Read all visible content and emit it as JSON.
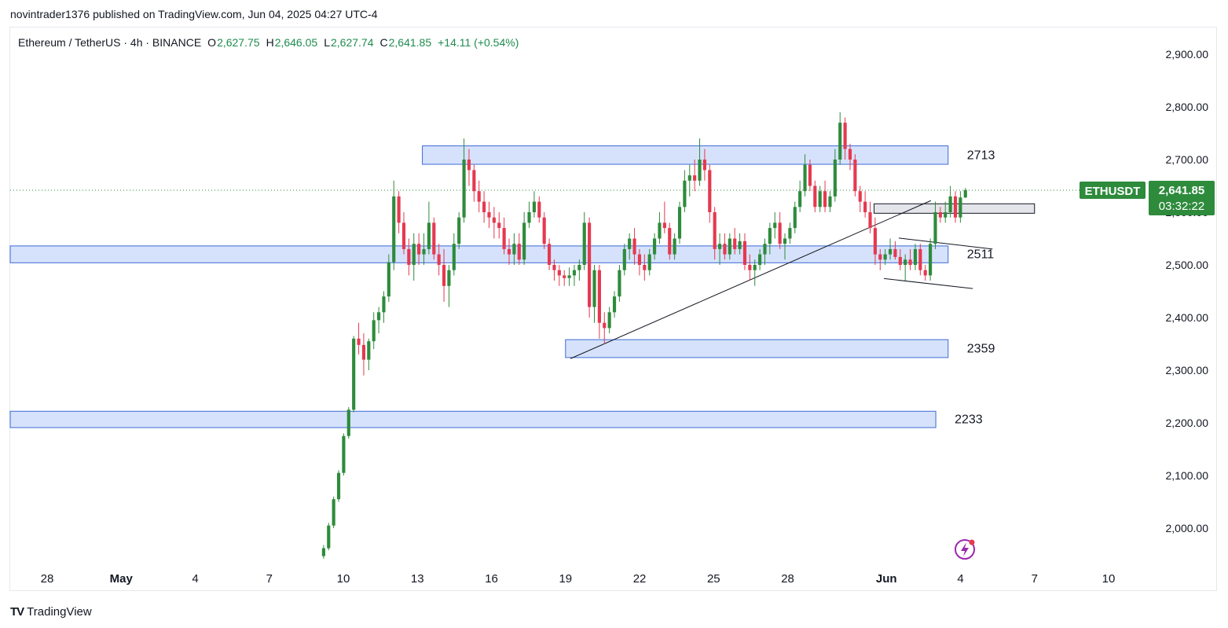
{
  "header": {
    "published_by": "novintrader1376 published on TradingView.com, Jun 04, 2025 04:27 UTC-4"
  },
  "footer": {
    "brand": "TradingView",
    "logo_icon": "tradingview-logo-icon"
  },
  "colors": {
    "up": "#26a69a",
    "up_body": "#2e8b3c",
    "down": "#ef5350",
    "down_body": "#e53950",
    "zone_fill": "#d6e2fb",
    "zone_stroke": "#3d6ad6",
    "ohlc_green": "#1e8c4e",
    "price_tag": "#2e8b3c"
  },
  "chart_data": {
    "type": "candlestick",
    "symbol_line": {
      "name": "Ethereum / TetherUS · 4h · BINANCE",
      "open_label": "O",
      "open": "2,627.75",
      "high_label": "H",
      "high": "2,646.05",
      "low_label": "L",
      "low": "2,627.74",
      "close_label": "C",
      "close": "2,641.85",
      "change": "+14.11 (+0.54%)"
    },
    "ylim": [
      1940,
      2950
    ],
    "y_ticks": [
      "2,000.00",
      "2,100.00",
      "2,200.00",
      "2,300.00",
      "2,400.00",
      "2,500.00",
      "2,600.00",
      "2,700.00",
      "2,800.00",
      "2,900.00"
    ],
    "y_tick_values": [
      2000,
      2100,
      2200,
      2300,
      2400,
      2500,
      2600,
      2700,
      2800,
      2900
    ],
    "x_ticks": [
      "28",
      "May",
      "4",
      "7",
      "10",
      "13",
      "16",
      "19",
      "22",
      "25",
      "28",
      "Jun",
      "4",
      "7",
      "10"
    ],
    "x_tick_days": [
      -3,
      0,
      3,
      6,
      9,
      12,
      15,
      18,
      21,
      24,
      27,
      31,
      34,
      37,
      40
    ],
    "x_domain_days": [
      -4.5,
      45.5
    ],
    "last_price": {
      "symbol": "ETHUSDT",
      "price": "2,641.85",
      "value": 2641.85,
      "countdown": "03:32:22"
    },
    "zones": [
      {
        "label": "2713",
        "from_day": 12.2,
        "to_day": 33.5,
        "low": 2691,
        "high": 2726
      },
      {
        "label": "2511",
        "from_day": -4.5,
        "to_day": 33.5,
        "low": 2504,
        "high": 2536
      },
      {
        "label": "2359",
        "from_day": 18.0,
        "to_day": 33.5,
        "low": 2324,
        "high": 2358
      },
      {
        "label": "2233",
        "from_day": -4.5,
        "to_day": 33.0,
        "low": 2191,
        "high": 2222
      }
    ],
    "small_zone": {
      "from_day": 30.5,
      "to_day": 37.0,
      "low": 2598,
      "high": 2616
    },
    "trendlines": [
      {
        "x1_day": 18.2,
        "y1": 2322,
        "x2_day": 32.8,
        "y2": 2622
      },
      {
        "x1_day": 31.5,
        "y1": 2551,
        "x2_day": 35.3,
        "y2": 2530
      },
      {
        "x1_day": 30.9,
        "y1": 2474,
        "x2_day": 34.5,
        "y2": 2455
      }
    ],
    "candles_ohlc": [
      [
        1947,
        1968,
        1942,
        1962
      ],
      [
        1962,
        2010,
        1958,
        2005
      ],
      [
        2005,
        2060,
        2000,
        2055
      ],
      [
        2055,
        2110,
        2050,
        2105
      ],
      [
        2105,
        2180,
        2100,
        2175
      ],
      [
        2175,
        2230,
        2170,
        2225
      ],
      [
        2225,
        2365,
        2220,
        2360
      ],
      [
        2360,
        2390,
        2330,
        2348
      ],
      [
        2348,
        2370,
        2290,
        2320
      ],
      [
        2320,
        2360,
        2300,
        2355
      ],
      [
        2355,
        2410,
        2340,
        2395
      ],
      [
        2395,
        2420,
        2370,
        2410
      ],
      [
        2410,
        2450,
        2390,
        2440
      ],
      [
        2440,
        2520,
        2430,
        2505
      ],
      [
        2505,
        2660,
        2490,
        2630
      ],
      [
        2630,
        2640,
        2560,
        2580
      ],
      [
        2580,
        2600,
        2520,
        2530
      ],
      [
        2530,
        2550,
        2480,
        2500
      ],
      [
        2500,
        2560,
        2470,
        2540
      ],
      [
        2540,
        2560,
        2500,
        2520
      ],
      [
        2520,
        2560,
        2500,
        2530
      ],
      [
        2530,
        2620,
        2520,
        2580
      ],
      [
        2580,
        2590,
        2510,
        2520
      ],
      [
        2520,
        2540,
        2480,
        2500
      ],
      [
        2500,
        2530,
        2430,
        2460
      ],
      [
        2460,
        2500,
        2420,
        2490
      ],
      [
        2490,
        2560,
        2480,
        2540
      ],
      [
        2540,
        2600,
        2530,
        2590
      ],
      [
        2590,
        2740,
        2580,
        2700
      ],
      [
        2700,
        2720,
        2650,
        2680
      ],
      [
        2680,
        2690,
        2620,
        2640
      ],
      [
        2640,
        2660,
        2600,
        2620
      ],
      [
        2620,
        2640,
        2580,
        2600
      ],
      [
        2600,
        2620,
        2570,
        2590
      ],
      [
        2590,
        2610,
        2550,
        2580
      ],
      [
        2580,
        2600,
        2550,
        2570
      ],
      [
        2570,
        2590,
        2520,
        2530
      ],
      [
        2530,
        2550,
        2500,
        2520
      ],
      [
        2520,
        2560,
        2500,
        2540
      ],
      [
        2540,
        2560,
        2500,
        2510
      ],
      [
        2510,
        2600,
        2500,
        2580
      ],
      [
        2580,
        2620,
        2570,
        2600
      ],
      [
        2600,
        2640,
        2590,
        2620
      ],
      [
        2620,
        2630,
        2580,
        2590
      ],
      [
        2590,
        2600,
        2530,
        2540
      ],
      [
        2540,
        2550,
        2490,
        2500
      ],
      [
        2500,
        2510,
        2470,
        2490
      ],
      [
        2490,
        2500,
        2460,
        2480
      ],
      [
        2480,
        2490,
        2460,
        2475
      ],
      [
        2475,
        2495,
        2460,
        2480
      ],
      [
        2480,
        2500,
        2460,
        2490
      ],
      [
        2490,
        2510,
        2470,
        2500
      ],
      [
        2500,
        2600,
        2490,
        2580
      ],
      [
        2580,
        2590,
        2400,
        2420
      ],
      [
        2420,
        2500,
        2390,
        2490
      ],
      [
        2490,
        2500,
        2360,
        2390
      ],
      [
        2390,
        2410,
        2350,
        2380
      ],
      [
        2380,
        2420,
        2370,
        2410
      ],
      [
        2410,
        2450,
        2400,
        2440
      ],
      [
        2440,
        2500,
        2430,
        2490
      ],
      [
        2490,
        2540,
        2480,
        2530
      ],
      [
        2530,
        2560,
        2510,
        2550
      ],
      [
        2550,
        2570,
        2500,
        2520
      ],
      [
        2520,
        2530,
        2480,
        2500
      ],
      [
        2500,
        2520,
        2470,
        2490
      ],
      [
        2490,
        2530,
        2480,
        2520
      ],
      [
        2520,
        2560,
        2510,
        2550
      ],
      [
        2550,
        2600,
        2540,
        2580
      ],
      [
        2580,
        2620,
        2560,
        2570
      ],
      [
        2570,
        2580,
        2510,
        2520
      ],
      [
        2520,
        2560,
        2510,
        2550
      ],
      [
        2550,
        2620,
        2540,
        2610
      ],
      [
        2610,
        2680,
        2600,
        2660
      ],
      [
        2660,
        2690,
        2630,
        2670
      ],
      [
        2670,
        2700,
        2640,
        2660
      ],
      [
        2660,
        2740,
        2650,
        2700
      ],
      [
        2700,
        2720,
        2660,
        2680
      ],
      [
        2680,
        2690,
        2580,
        2600
      ],
      [
        2600,
        2610,
        2510,
        2530
      ],
      [
        2530,
        2560,
        2500,
        2540
      ],
      [
        2540,
        2560,
        2510,
        2520
      ],
      [
        2520,
        2560,
        2510,
        2550
      ],
      [
        2550,
        2570,
        2520,
        2530
      ],
      [
        2530,
        2560,
        2520,
        2545
      ],
      [
        2545,
        2560,
        2490,
        2500
      ],
      [
        2500,
        2520,
        2470,
        2490
      ],
      [
        2490,
        2510,
        2460,
        2500
      ],
      [
        2500,
        2530,
        2490,
        2520
      ],
      [
        2520,
        2550,
        2500,
        2540
      ],
      [
        2540,
        2580,
        2520,
        2570
      ],
      [
        2570,
        2600,
        2550,
        2580
      ],
      [
        2580,
        2600,
        2530,
        2540
      ],
      [
        2540,
        2560,
        2510,
        2550
      ],
      [
        2550,
        2580,
        2540,
        2570
      ],
      [
        2570,
        2620,
        2560,
        2610
      ],
      [
        2610,
        2660,
        2600,
        2640
      ],
      [
        2640,
        2710,
        2630,
        2690
      ],
      [
        2690,
        2700,
        2640,
        2650
      ],
      [
        2650,
        2660,
        2600,
        2610
      ],
      [
        2610,
        2650,
        2600,
        2640
      ],
      [
        2640,
        2660,
        2600,
        2610
      ],
      [
        2610,
        2640,
        2600,
        2630
      ],
      [
        2630,
        2720,
        2620,
        2700
      ],
      [
        2700,
        2790,
        2690,
        2770
      ],
      [
        2770,
        2780,
        2700,
        2720
      ],
      [
        2720,
        2730,
        2680,
        2700
      ],
      [
        2700,
        2710,
        2630,
        2640
      ],
      [
        2640,
        2650,
        2600,
        2620
      ],
      [
        2620,
        2640,
        2590,
        2600
      ],
      [
        2600,
        2620,
        2560,
        2570
      ],
      [
        2570,
        2590,
        2500,
        2520
      ],
      [
        2520,
        2530,
        2490,
        2510
      ],
      [
        2510,
        2530,
        2500,
        2520
      ],
      [
        2520,
        2550,
        2510,
        2530
      ],
      [
        2530,
        2545,
        2510,
        2515
      ],
      [
        2515,
        2530,
        2490,
        2500
      ],
      [
        2500,
        2520,
        2470,
        2510
      ],
      [
        2510,
        2530,
        2490,
        2500
      ],
      [
        2500,
        2540,
        2490,
        2530
      ],
      [
        2530,
        2540,
        2480,
        2490
      ],
      [
        2490,
        2500,
        2470,
        2480
      ],
      [
        2480,
        2550,
        2470,
        2540
      ],
      [
        2540,
        2620,
        2530,
        2600
      ],
      [
        2600,
        2610,
        2580,
        2590
      ],
      [
        2590,
        2620,
        2580,
        2600
      ],
      [
        2600,
        2650,
        2590,
        2630
      ],
      [
        2630,
        2640,
        2580,
        2590
      ],
      [
        2590,
        2640,
        2580,
        2628
      ],
      [
        2628,
        2646,
        2627,
        2642
      ]
    ],
    "candles_start_day": 8.2,
    "candles_end_day": 34.2
  }
}
